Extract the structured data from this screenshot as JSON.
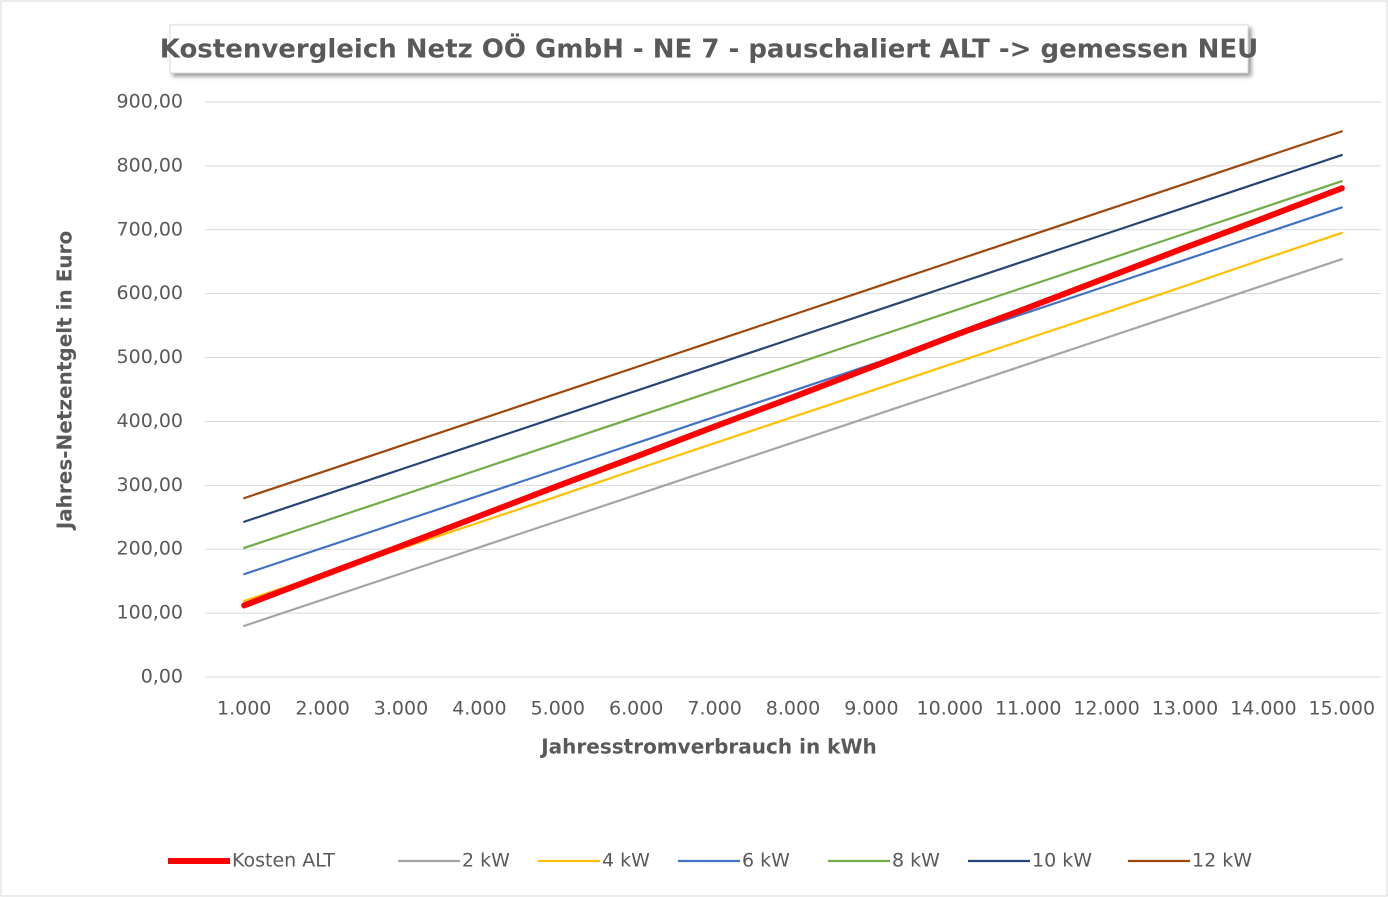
{
  "chart_data": {
    "type": "line",
    "title": "Kostenvergleich Netz OÖ GmbH - NE 7 - pauschaliert  ALT -> gemessen NEU",
    "x_label": "Jahresstromverbrauch  in kWh",
    "y_label": "Jahres-Netzentgelt in Euro",
    "categories": [
      "1.000",
      "2.000",
      "3.000",
      "4.000",
      "5.000",
      "6.000",
      "7.000",
      "8.000",
      "9.000",
      "10.000",
      "11.000",
      "12.000",
      "13.000",
      "14.000",
      "15.000"
    ],
    "series": [
      {
        "name": "Kosten ALT",
        "color": "#ff0000",
        "values": [
          112,
          159,
          205,
          252,
          299,
          345,
          392,
          438,
          485,
          532,
          578,
          625,
          672,
          718,
          765
        ]
      },
      {
        "name": "2 kW",
        "color": "#a5a5a5",
        "values": [
          80,
          121,
          162,
          203,
          244,
          285,
          326,
          367,
          408,
          449,
          490,
          531,
          572,
          613,
          654
        ]
      },
      {
        "name": "4 kW",
        "color": "#ffc000",
        "values": [
          119,
          160,
          201,
          242,
          283,
          325,
          366,
          407,
          448,
          489,
          530,
          571,
          612,
          654,
          695
        ]
      },
      {
        "name": "6 kW",
        "color": "#4472c4",
        "values": [
          161,
          202,
          243,
          284,
          325,
          366,
          407,
          448,
          489,
          530,
          571,
          612,
          653,
          694,
          735
        ]
      },
      {
        "name": "8 kW",
        "color": "#70ad47",
        "values": [
          202,
          243,
          284,
          325,
          366,
          407,
          448,
          489,
          530,
          571,
          612,
          653,
          694,
          735,
          776
        ]
      },
      {
        "name": "10 kW",
        "color": "#264478",
        "values": [
          243,
          284,
          325,
          366,
          407,
          448,
          489,
          530,
          571,
          612,
          653,
          694,
          735,
          776,
          817
        ]
      },
      {
        "name": "12 kW",
        "color": "#9e480e",
        "values": [
          280,
          321,
          362,
          403,
          444,
          485,
          526,
          567,
          608,
          649,
          690,
          731,
          772,
          813,
          854
        ]
      }
    ],
    "ylim": [
      0,
      900
    ],
    "yticks": [
      {
        "value": 0,
        "label": "0,00"
      },
      {
        "value": 100,
        "label": "100,00"
      },
      {
        "value": 200,
        "label": "200,00"
      },
      {
        "value": 300,
        "label": "300,00"
      },
      {
        "value": 400,
        "label": "400,00"
      },
      {
        "value": 500,
        "label": "500,00"
      },
      {
        "value": 600,
        "label": "600,00"
      },
      {
        "value": 700,
        "label": "700,00"
      },
      {
        "value": 800,
        "label": "800,00"
      },
      {
        "value": 900,
        "label": "900,00"
      }
    ],
    "grid": true
  }
}
